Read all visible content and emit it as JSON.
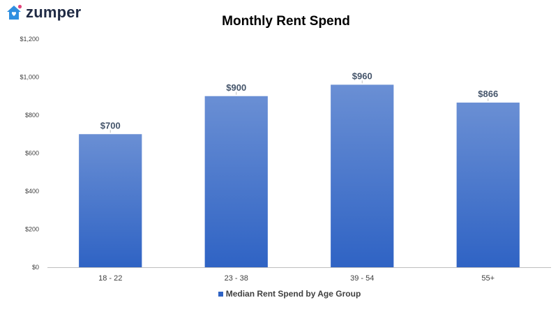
{
  "brand": {
    "name": "zumper",
    "icon": "house-heart-icon",
    "color": "#2f8fe0",
    "accent": "#e0457b"
  },
  "chart_data": {
    "type": "bar",
    "title": "Monthly Rent Spend",
    "categories": [
      "18 - 22",
      "23 - 38",
      "39 - 54",
      "55+"
    ],
    "series": [
      {
        "name": "Median Rent Spend by Age Group",
        "values": [
          700,
          900,
          960,
          866
        ]
      }
    ],
    "data_labels": [
      "$700",
      "$900",
      "$960",
      "$866"
    ],
    "y_ticks": [
      0,
      200,
      400,
      600,
      800,
      1000,
      1200
    ],
    "y_tick_labels": [
      "$0",
      "$200",
      "$400",
      "$600",
      "$800",
      "$1,000",
      "$1,200"
    ],
    "ylim": [
      0,
      1200
    ],
    "xlabel": "",
    "ylabel": "",
    "grid": false,
    "legend_position": "bottom",
    "bar_color_top": "#6a8fd4",
    "bar_color_bottom": "#2f63c4"
  }
}
